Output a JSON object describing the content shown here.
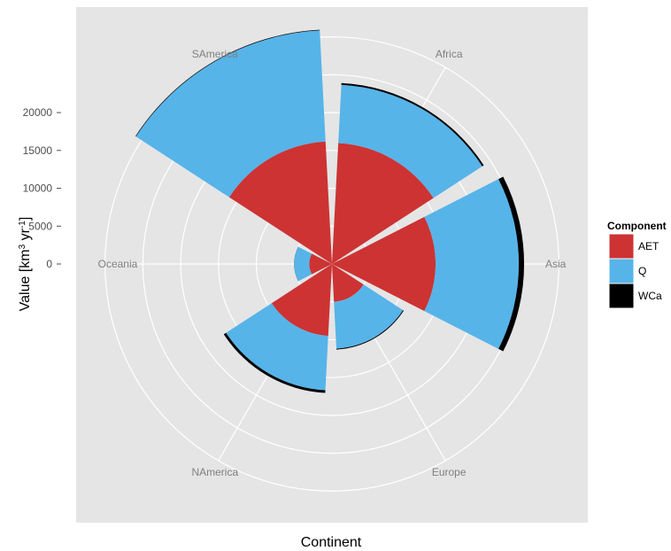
{
  "chart_data": {
    "type": "polar-stacked-bar",
    "xlabel": "Continent",
    "ylabel": "Value [km³ yr⁻¹]",
    "ylabel_parts": {
      "pre": "Value [km",
      "exp1": "3",
      "mid": " yr",
      "exp2": "-1",
      "post": "]"
    },
    "categories": [
      "Asia",
      "Europe",
      "NAmerica",
      "Oceania",
      "SAmerica",
      "Africa"
    ],
    "series": [
      {
        "name": "AET",
        "color": "#cd3333",
        "values": [
          13700,
          5000,
          9500,
          3000,
          16200,
          16000
        ]
      },
      {
        "name": "Q",
        "color": "#56b4e9",
        "values": [
          11000,
          6200,
          7200,
          2000,
          14700,
          7700
        ]
      },
      {
        "name": "WCa",
        "color": "#000000",
        "values": [
          700,
          120,
          350,
          20,
          80,
          230
        ]
      }
    ],
    "rings": [
      0,
      5000,
      10000,
      15000,
      20000,
      25000,
      30000
    ],
    "ytick_labels": [
      "0",
      "5000",
      "10000",
      "15000",
      "20000"
    ],
    "ytick_values": [
      0,
      5000,
      10000,
      15000,
      20000
    ],
    "rmax": 33000,
    "grid": true,
    "legend": {
      "title": "Component",
      "position": "right"
    },
    "background": "#e5e5e5"
  }
}
